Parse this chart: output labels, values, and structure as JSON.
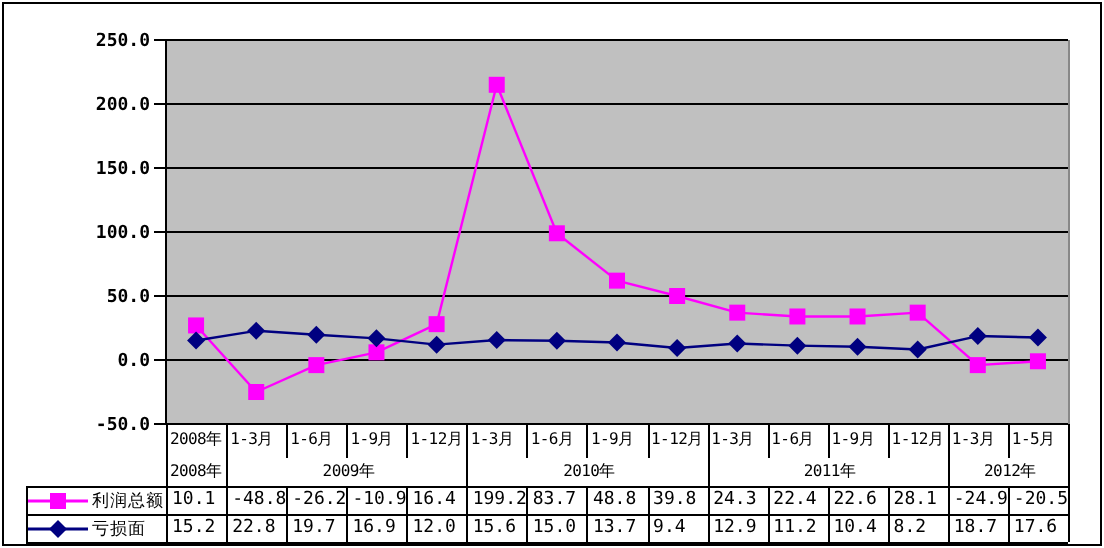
{
  "chart_data": {
    "type": "line",
    "categories": [
      "2008年",
      "1-3月",
      "1-6月",
      "1-9月",
      "1-12月",
      "1-3月",
      "1-6月",
      "1-9月",
      "1-12月",
      "1-3月",
      "1-6月",
      "1-9月",
      "1-12月",
      "1-3月",
      "1-5月"
    ],
    "annotations": [
      "2008年",
      "2009年",
      "2010年",
      "2011年",
      "2012年",
      "10.1",
      "-48.8",
      "-26.2",
      "-10.9",
      "16.4",
      "199.2",
      "83.7",
      "48.8",
      "39.8",
      "24.3",
      "22.4",
      "22.6",
      "28.1",
      "-24.9",
      "-20.5"
    ],
    "series": [
      {
        "name": "利润总额",
        "color": "#ff00ff",
        "marker": "square",
        "values": [
          27,
          -25,
          -4,
          6,
          28,
          215,
          99,
          62,
          50,
          37,
          34,
          34,
          37,
          -4,
          -1
        ]
      },
      {
        "name": "亏损面",
        "color": "#000080",
        "marker": "diamond",
        "values": [
          15.2,
          22.8,
          19.7,
          16.9,
          12.0,
          15.6,
          15.0,
          13.7,
          9.4,
          12.9,
          11.2,
          10.4,
          8.2,
          18.7,
          17.6
        ],
        "value_labels": [
          "15.2",
          "22.8",
          "19.7",
          "16.9",
          "12.0",
          "15.6",
          "15.0",
          "13.7",
          "9.4",
          "12.9",
          "11.2",
          "10.4",
          "8.2",
          "18.7",
          "17.6"
        ]
      }
    ],
    "ylim": [
      -50,
      250
    ],
    "yticks": [
      {
        "value": -50,
        "label": "-50.0"
      },
      {
        "value": 0,
        "label": "0.0"
      },
      {
        "value": 50,
        "label": "50.0"
      },
      {
        "value": 100,
        "label": "100.0"
      },
      {
        "value": 150,
        "label": "150.0"
      },
      {
        "value": 200,
        "label": "200.0"
      },
      {
        "value": 250,
        "label": "250.0"
      }
    ],
    "grid": "y",
    "legend": "bottom left"
  }
}
